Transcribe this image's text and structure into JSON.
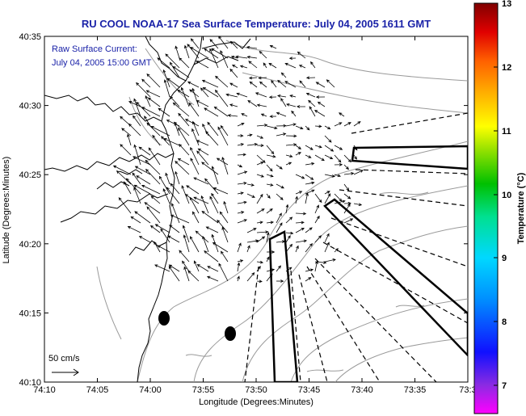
{
  "title": "RU COOL  NOAA-17  Sea Surface Temperature:  July 04, 2005 1611 GMT",
  "legend": {
    "line1": "Raw Surface Current:",
    "line2": "July 04, 2005 15:00 GMT"
  },
  "scale_label": "50 cm/s",
  "axes": {
    "xlabel": "Longitude (Degrees:Minutes)",
    "ylabel": "Latitude (Degrees:Minutes)",
    "x_ticks": [
      "74:10",
      "74:05",
      "74:00",
      "73:55",
      "73:50",
      "73:45",
      "73:40",
      "73:35",
      "73:3"
    ],
    "y_ticks": [
      "40:35",
      "40:30",
      "40:25",
      "40:20",
      "40:15",
      "40:10"
    ]
  },
  "colorbar": {
    "label": "Temperature (°C)",
    "ticks": [
      "13",
      "12",
      "11",
      "10",
      "9",
      "8",
      "7"
    ],
    "colors": [
      "#ff00ff",
      "#8a2be2",
      "#0000ff",
      "#0080ff",
      "#00c8ff",
      "#00e0a0",
      "#00c000",
      "#80e000",
      "#ffff00",
      "#ffc000",
      "#ff8000",
      "#ff2000",
      "#c00000",
      "#800000"
    ]
  }
}
